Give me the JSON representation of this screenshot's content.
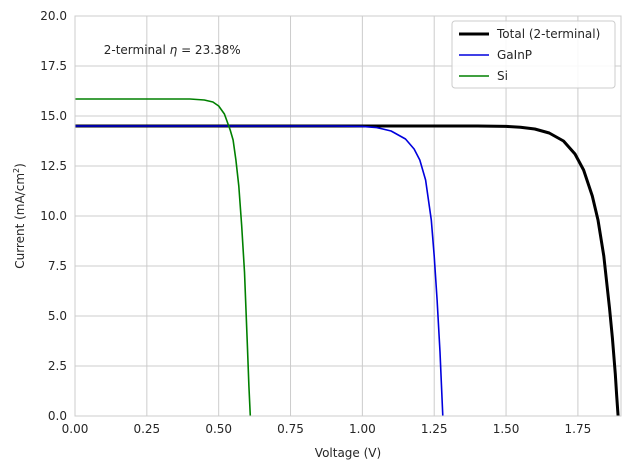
{
  "chart_data": {
    "type": "line",
    "xlabel": "Voltage (V)",
    "ylabel_base": "Current (mA/cm",
    "ylabel_sup": "2",
    "ylabel_end": ")",
    "xlim": [
      0,
      1.9
    ],
    "ylim": [
      0,
      20
    ],
    "xticks": [
      0,
      0.25,
      0.5,
      0.75,
      1.0,
      1.25,
      1.5,
      1.75
    ],
    "xtick_labels": [
      "0.00",
      "0.25",
      "0.50",
      "0.75",
      "1.00",
      "1.25",
      "1.50",
      "1.75"
    ],
    "yticks": [
      0,
      2.5,
      5,
      7.5,
      10,
      12.5,
      15,
      17.5,
      20
    ],
    "ytick_labels": [
      "0.0",
      "2.5",
      "5.0",
      "7.5",
      "10.0",
      "12.5",
      "15.0",
      "17.5",
      "20.0"
    ],
    "grid": true,
    "legend_position": "upper-right",
    "annotation": {
      "prefix": "2-terminal ",
      "symbol": "η",
      "suffix": " = 23.38%",
      "x": 0.1,
      "y": 18.1
    },
    "series": [
      {
        "name": "Total (2-terminal)",
        "color": "#000000",
        "width": 3,
        "x": [
          0,
          1.0,
          1.4,
          1.5,
          1.55,
          1.6,
          1.65,
          1.7,
          1.74,
          1.77,
          1.8,
          1.82,
          1.84,
          1.86,
          1.87,
          1.88,
          1.885,
          1.89
        ],
        "y": [
          14.5,
          14.5,
          14.5,
          14.48,
          14.44,
          14.35,
          14.15,
          13.75,
          13.1,
          12.3,
          11.0,
          9.8,
          8.0,
          5.4,
          3.9,
          2.1,
          1.0,
          0
        ]
      },
      {
        "name": "GaInP",
        "color": "#0000dd",
        "width": 1.6,
        "x": [
          0,
          0.9,
          1.0,
          1.05,
          1.1,
          1.15,
          1.18,
          1.2,
          1.22,
          1.24,
          1.25,
          1.26,
          1.27,
          1.275,
          1.28
        ],
        "y": [
          14.5,
          14.5,
          14.48,
          14.42,
          14.25,
          13.85,
          13.35,
          12.8,
          11.8,
          9.8,
          8.0,
          5.8,
          3.2,
          1.6,
          0
        ]
      },
      {
        "name": "Si",
        "color": "#008000",
        "width": 1.6,
        "x": [
          0,
          0.4,
          0.45,
          0.48,
          0.5,
          0.52,
          0.54,
          0.55,
          0.56,
          0.57,
          0.58,
          0.59,
          0.6,
          0.605,
          0.61
        ],
        "y": [
          15.85,
          15.85,
          15.8,
          15.7,
          15.5,
          15.1,
          14.3,
          13.8,
          12.8,
          11.5,
          9.5,
          7.2,
          3.5,
          1.5,
          0
        ]
      }
    ]
  }
}
